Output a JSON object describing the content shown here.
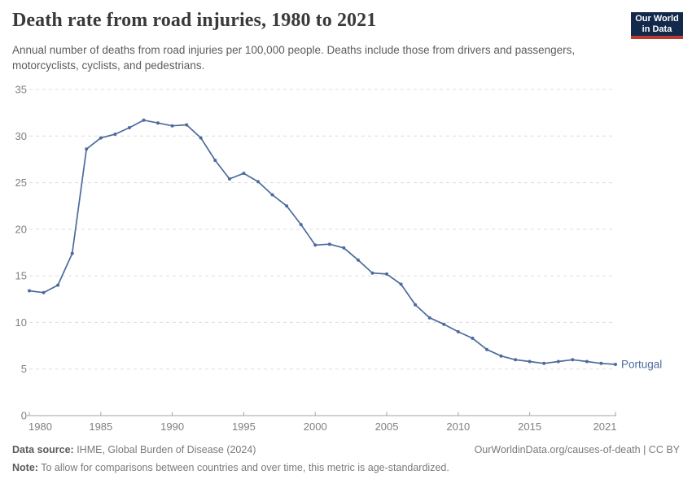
{
  "header": {
    "title": "Death rate from road injuries, 1980 to 2021",
    "subtitle": "Annual number of deaths from road injuries per 100,000 people. Deaths include those from drivers and passengers, motorcyclists, cyclists, and pedestrians.",
    "logo": {
      "line1": "Our World",
      "line2": "in Data",
      "bg_color": "#12294b",
      "stripe_color": "#c0392e"
    }
  },
  "chart_data": {
    "type": "line",
    "title": "Death rate from road injuries, 1980 to 2021",
    "xlabel": "",
    "ylabel": "",
    "xlim": [
      1980,
      2021
    ],
    "ylim": [
      0,
      35
    ],
    "x_ticks": [
      1980,
      1985,
      1990,
      1995,
      2000,
      2005,
      2010,
      2015,
      2021
    ],
    "y_ticks": [
      0,
      5,
      10,
      15,
      20,
      25,
      30,
      35
    ],
    "grid": "horizontal-dashed",
    "legend_position": "end-of-line-label",
    "x": [
      1980,
      1981,
      1982,
      1983,
      1984,
      1985,
      1986,
      1987,
      1988,
      1989,
      1990,
      1991,
      1992,
      1993,
      1994,
      1995,
      1996,
      1997,
      1998,
      1999,
      2000,
      2001,
      2002,
      2003,
      2004,
      2005,
      2006,
      2007,
      2008,
      2009,
      2010,
      2011,
      2012,
      2013,
      2014,
      2015,
      2016,
      2017,
      2018,
      2019,
      2020,
      2021
    ],
    "series": [
      {
        "name": "Portugal",
        "color": "#4c6b9d",
        "values": [
          13.4,
          13.2,
          14.0,
          17.4,
          28.6,
          29.8,
          30.2,
          30.9,
          31.7,
          31.4,
          31.1,
          31.2,
          29.8,
          27.4,
          25.4,
          26.0,
          25.1,
          23.7,
          22.5,
          20.5,
          18.3,
          18.4,
          18.0,
          16.7,
          15.3,
          15.2,
          14.1,
          11.9,
          10.5,
          9.8,
          9.0,
          8.3,
          7.1,
          6.4,
          6.0,
          5.8,
          5.6,
          5.8,
          6.0,
          5.8,
          5.6,
          5.5
        ]
      }
    ],
    "colors": {
      "grid": "#dddddd",
      "axis": "#a3a3a3",
      "tick_labels": "#7f7f7f"
    }
  },
  "footer": {
    "source_label": "Data source:",
    "source_text": " IHME, Global Burden of Disease (2024)",
    "rights": "OurWorldinData.org/causes-of-death | CC BY",
    "note_label": "Note:",
    "note_text": " To allow for comparisons between countries and over time, this metric is age-standardized."
  }
}
